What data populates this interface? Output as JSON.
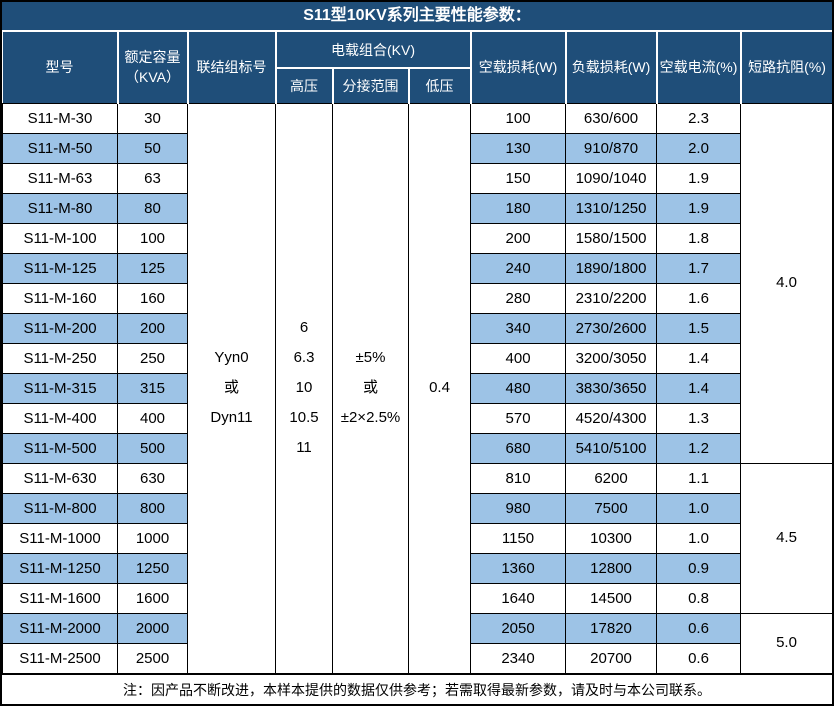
{
  "title": "S11型10KV系列主要性能参数：",
  "colors": {
    "header_bg": "#1F4E79",
    "stripe_bg": "#9DC3E6",
    "header_text": "#ffffff",
    "body_text": "#000000",
    "border": "#000000"
  },
  "table": {
    "headers": {
      "model": "型号",
      "capacity_line1": "额定容量",
      "capacity_line2": "（KVA）",
      "connection": "联结组标号",
      "voltage_group": "电载组合(KV)",
      "hv": "高压",
      "tap_range": "分接范围",
      "lv": "低压",
      "no_load_loss": "空载损耗(W)",
      "load_loss": "负载损耗(W)",
      "no_load_current": "空载电流(%)",
      "impedance": "短路抗阻(%)"
    },
    "merged": {
      "connection": "Yyn0\n或\nDyn11",
      "hv": "6\n6.3\n10\n10.5\n11",
      "tap_range": "±5%\n或\n±2×2.5%",
      "lv": "0.4"
    },
    "impedance_groups": [
      {
        "value": "4.0",
        "row_span": 12
      },
      {
        "value": "4.5",
        "row_span": 5
      },
      {
        "value": "5.0",
        "row_span": 2
      }
    ],
    "rows": [
      {
        "model": "S11-M-30",
        "capacity": "30",
        "no_load_loss": "100",
        "load_loss": "630/600",
        "no_load_current": "2.3"
      },
      {
        "model": "S11-M-50",
        "capacity": "50",
        "no_load_loss": "130",
        "load_loss": "910/870",
        "no_load_current": "2.0"
      },
      {
        "model": "S11-M-63",
        "capacity": "63",
        "no_load_loss": "150",
        "load_loss": "1090/1040",
        "no_load_current": "1.9"
      },
      {
        "model": "S11-M-80",
        "capacity": "80",
        "no_load_loss": "180",
        "load_loss": "1310/1250",
        "no_load_current": "1.9"
      },
      {
        "model": "S11-M-100",
        "capacity": "100",
        "no_load_loss": "200",
        "load_loss": "1580/1500",
        "no_load_current": "1.8"
      },
      {
        "model": "S11-M-125",
        "capacity": "125",
        "no_load_loss": "240",
        "load_loss": "1890/1800",
        "no_load_current": "1.7"
      },
      {
        "model": "S11-M-160",
        "capacity": "160",
        "no_load_loss": "280",
        "load_loss": "2310/2200",
        "no_load_current": "1.6"
      },
      {
        "model": "S11-M-200",
        "capacity": "200",
        "no_load_loss": "340",
        "load_loss": "2730/2600",
        "no_load_current": "1.5"
      },
      {
        "model": "S11-M-250",
        "capacity": "250",
        "no_load_loss": "400",
        "load_loss": "3200/3050",
        "no_load_current": "1.4"
      },
      {
        "model": "S11-M-315",
        "capacity": "315",
        "no_load_loss": "480",
        "load_loss": "3830/3650",
        "no_load_current": "1.4"
      },
      {
        "model": "S11-M-400",
        "capacity": "400",
        "no_load_loss": "570",
        "load_loss": "4520/4300",
        "no_load_current": "1.3"
      },
      {
        "model": "S11-M-500",
        "capacity": "500",
        "no_load_loss": "680",
        "load_loss": "5410/5100",
        "no_load_current": "1.2"
      },
      {
        "model": "S11-M-630",
        "capacity": "630",
        "no_load_loss": "810",
        "load_loss": "6200",
        "no_load_current": "1.1"
      },
      {
        "model": "S11-M-800",
        "capacity": "800",
        "no_load_loss": "980",
        "load_loss": "7500",
        "no_load_current": "1.0"
      },
      {
        "model": "S11-M-1000",
        "capacity": "1000",
        "no_load_loss": "1150",
        "load_loss": "10300",
        "no_load_current": "1.0"
      },
      {
        "model": "S11-M-1250",
        "capacity": "1250",
        "no_load_loss": "1360",
        "load_loss": "12800",
        "no_load_current": "0.9"
      },
      {
        "model": "S11-M-1600",
        "capacity": "1600",
        "no_load_loss": "1640",
        "load_loss": "14500",
        "no_load_current": "0.8"
      },
      {
        "model": "S11-M-2000",
        "capacity": "2000",
        "no_load_loss": "2050",
        "load_loss": "17820",
        "no_load_current": "0.6"
      },
      {
        "model": "S11-M-2500",
        "capacity": "2500",
        "no_load_loss": "2340",
        "load_loss": "20700",
        "no_load_current": "0.6"
      }
    ]
  },
  "footer_note": "注：因产品不断改进，本样本提供的数据仅供参考；若需取得最新参数，请及时与本公司联系。"
}
